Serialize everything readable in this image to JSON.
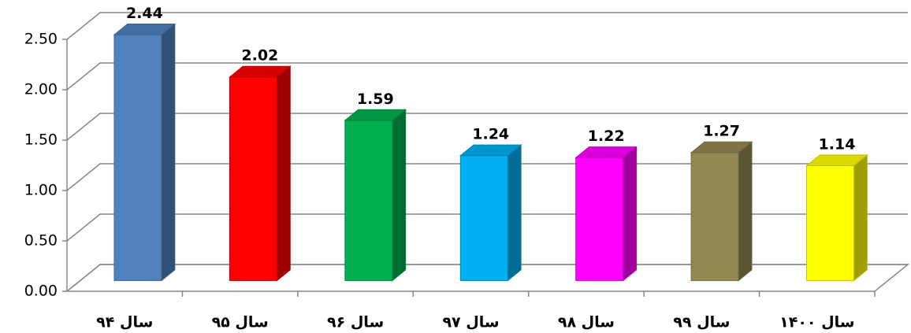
{
  "chart_data": {
    "type": "bar3d",
    "categories": [
      "سال ۹۴",
      "سال ۹۵",
      "سال ۹۶",
      "سال ۹۷",
      "سال ۹۸",
      "سال ۹۹",
      "سال ۱۴۰۰"
    ],
    "values": [
      2.44,
      2.02,
      1.59,
      1.24,
      1.22,
      1.27,
      1.14
    ],
    "colors": [
      "#4f81bd",
      "#ff0000",
      "#00b050",
      "#00b0f0",
      "#ff00ff",
      "#938953",
      "#ffff00"
    ],
    "ylim": [
      0,
      2.5
    ],
    "yticks": [
      {
        "value": 0,
        "label": "0.00"
      },
      {
        "value": 0.5,
        "label": "0.50"
      },
      {
        "value": 1,
        "label": "1.00"
      },
      {
        "value": 1.5,
        "label": "1.50"
      },
      {
        "value": 2,
        "label": "2.00"
      },
      {
        "value": 2.5,
        "label": "2.50"
      }
    ],
    "grid": true
  }
}
